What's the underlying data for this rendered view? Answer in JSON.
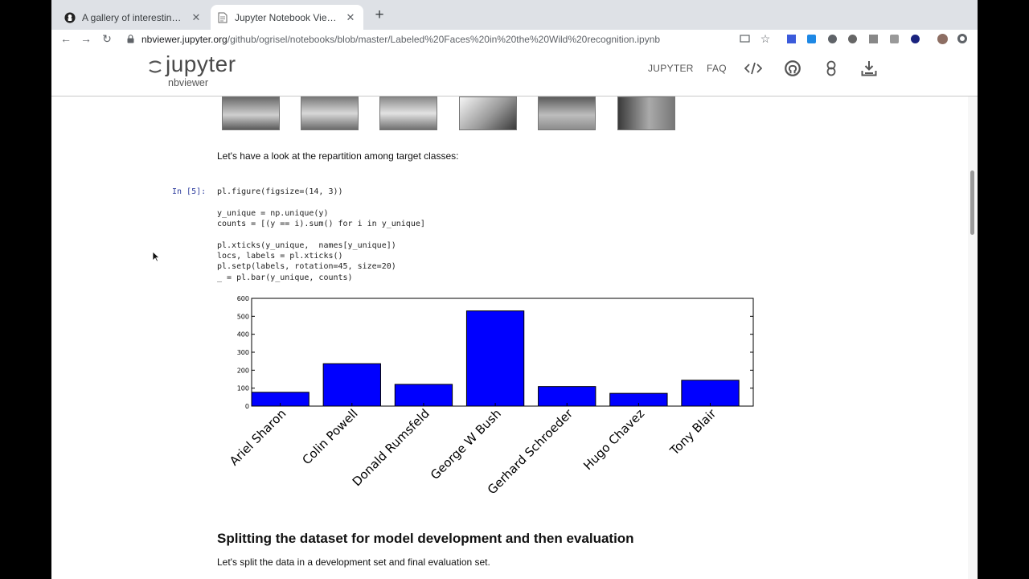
{
  "tabs": [
    {
      "title": "A gallery of interesting Jupyter",
      "favicon": "github-icon",
      "active": false
    },
    {
      "title": "Jupyter Notebook Viewer",
      "favicon": "document-icon",
      "active": true
    }
  ],
  "toolbar": {
    "url_host": "nbviewer.jupyter.org",
    "url_path": "/github/ogrisel/notebooks/blob/master/Labeled%20Faces%20in%20the%20Wild%20recognition.ipynb"
  },
  "header": {
    "logo_word": "jupyter",
    "logo_sub": "nbviewer",
    "nav": {
      "jupyter": "JUPYTER",
      "faq": "FAQ"
    },
    "icons": [
      "code-icon",
      "github-icon",
      "binder-icon",
      "download-icon"
    ]
  },
  "notebook": {
    "markdown_1": "Let's have a look at the repartition among target classes:",
    "prompt": "In [5]:",
    "code": [
      "pl.figure(figsize=(14, 3))",
      "",
      "y_unique = np.unique(y)",
      "counts = [(y == i).sum() for i in y_unique]",
      "",
      "pl.xticks(y_unique,  names[y_unique])",
      "locs, labels = pl.xticks()",
      "pl.setp(labels, rotation=45, size=20)",
      "_ = pl.bar(y_unique, counts)"
    ],
    "section_heading": "Splitting the dataset for model development and then evaluation",
    "markdown_2": "Let's split the data in a development set and final evaluation set."
  },
  "chart_data": {
    "type": "bar",
    "categories": [
      "Ariel Sharon",
      "Colin Powell",
      "Donald Rumsfeld",
      "George W Bush",
      "Gerhard Schroeder",
      "Hugo Chavez",
      "Tony Blair"
    ],
    "values": [
      77,
      236,
      121,
      530,
      109,
      71,
      144
    ],
    "yticks": [
      0,
      100,
      200,
      300,
      400,
      500,
      600
    ],
    "ylim": [
      0,
      600
    ],
    "bar_color": "#0000ff",
    "grid": false,
    "legend": false
  },
  "colors": {
    "bar": "#0000ff",
    "prompt": "#303f9f",
    "tab_strip": "#dee1e6"
  }
}
